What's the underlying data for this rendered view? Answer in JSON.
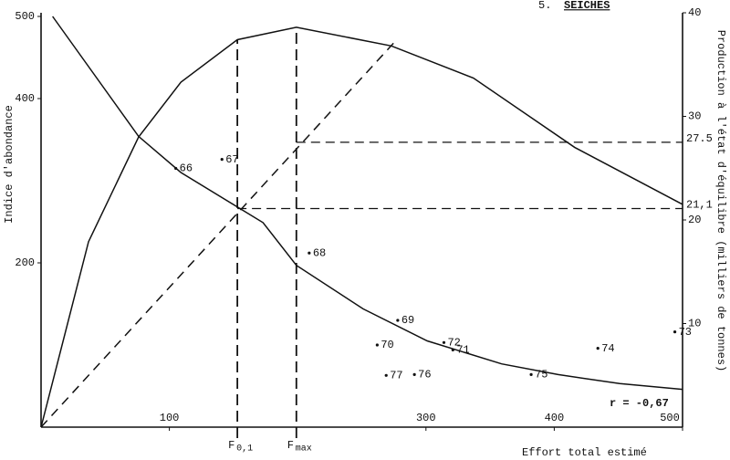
{
  "chart_data": {
    "type": "line",
    "section_number": "5.",
    "title": "SEICHES",
    "xlabel": "Effort total estimé",
    "ylabel": "Indice d'abondance",
    "y2label": "Production à l'état d'équilibre (milliers de tonnes)",
    "xlim": [
      0,
      500
    ],
    "ylim": [
      0,
      500
    ],
    "y2lim": [
      0,
      40
    ],
    "xticks": [
      100,
      300,
      400,
      500
    ],
    "yticks": [
      200,
      400,
      500
    ],
    "y2ticks": [
      10,
      20,
      30,
      40
    ],
    "grid": false,
    "series": [
      {
        "axis": "y",
        "color": "#111",
        "dashed": false,
        "x": [
          9,
          76,
          109,
          173,
          199,
          251,
          301,
          359,
          403,
          451,
          500
        ],
        "values": [
          500,
          354,
          310,
          249,
          197,
          144,
          105,
          77,
          64,
          53,
          46
        ]
      },
      {
        "axis": "y2",
        "color": "#111",
        "dashed": false,
        "x": [
          0,
          37,
          76,
          109,
          153,
          199,
          273,
          337,
          416,
          500
        ],
        "values": [
          0,
          17.9,
          28.0,
          33.3,
          37.4,
          38.6,
          36.8,
          33.7,
          27.0,
          21.5
        ]
      },
      {
        "axis": "y2",
        "color": "#111",
        "dashed": true,
        "x": [
          0,
          275
        ],
        "values": [
          0,
          37.1
        ]
      }
    ],
    "points": {
      "axis": "y",
      "color": "#111",
      "x": [
        105,
        141,
        209,
        278,
        314,
        321,
        262,
        269,
        291,
        382,
        434,
        494
      ],
      "values": [
        315,
        326,
        212,
        130,
        103,
        94,
        100,
        63,
        64,
        64,
        96,
        116
      ],
      "labels": [
        "66",
        "67",
        "68",
        "69",
        "72",
        "71",
        "70",
        "77",
        "76",
        "75",
        "74",
        "73"
      ]
    },
    "vertical_lines": [
      {
        "x": 153,
        "label": "F",
        "subscript": "0,1"
      },
      {
        "x": 199,
        "label": "F",
        "subscript": "max"
      }
    ],
    "horizontal_lines": [
      {
        "y2": 27.5,
        "x_start": 199,
        "label": "27.5"
      },
      {
        "y2": 21.1,
        "x_start": 153,
        "label": "21,1"
      }
    ],
    "annotation": "r = -0,67"
  }
}
